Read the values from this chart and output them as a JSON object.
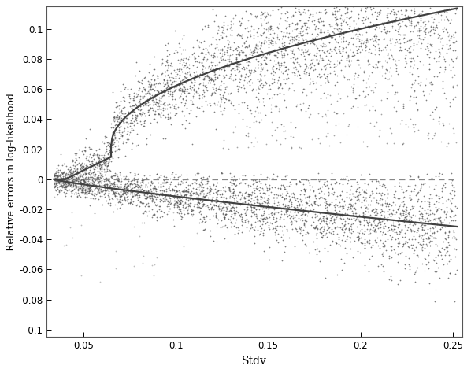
{
  "xlim": [
    0.03,
    0.255
  ],
  "ylim": [
    -0.105,
    0.115
  ],
  "xlabel": "Stdv",
  "ylabel": "Relative errors in log-likelihood",
  "xticks": [
    0.05,
    0.1,
    0.15,
    0.2,
    0.25
  ],
  "yticks": [
    -0.1,
    -0.08,
    -0.06,
    -0.04,
    -0.02,
    0,
    0.02,
    0.04,
    0.06,
    0.08,
    0.1
  ],
  "background_color": "#ffffff",
  "scatter_color": "#555555",
  "curve_color": "#404040",
  "dashed_color": "#888888",
  "scatter_alpha": 0.75,
  "scatter_size": 1.5,
  "n_points": 3000,
  "seed": 7,
  "figsize": [
    5.98,
    4.74
  ],
  "dpi": 100
}
